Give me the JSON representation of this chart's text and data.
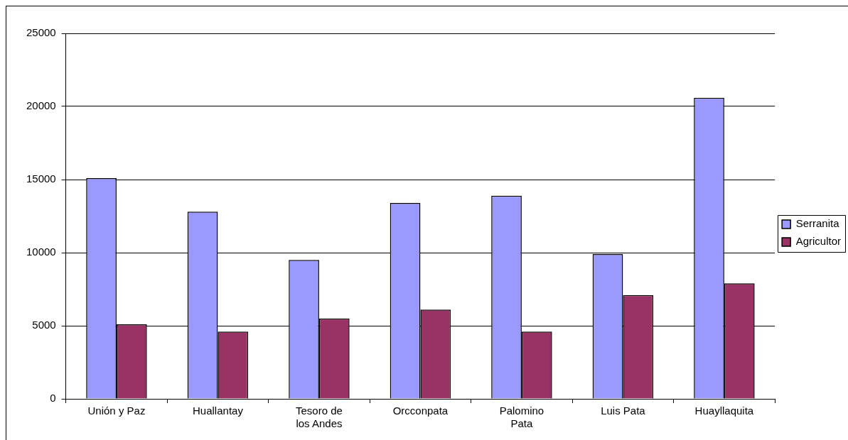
{
  "chart_data": {
    "type": "bar",
    "categories": [
      "Unión y Paz",
      "Huallantay",
      "Tesoro de los Andes",
      "Orcconpata",
      "Palomino Pata",
      "Luis Pata",
      "Huayllaquita"
    ],
    "series": [
      {
        "name": "Serranita",
        "color": "#9999ff",
        "values": [
          15100,
          12800,
          9500,
          13400,
          13900,
          9900,
          20600
        ]
      },
      {
        "name": "Agricultor",
        "color": "#993366",
        "values": [
          5100,
          4600,
          5500,
          6100,
          4600,
          7100,
          7900
        ]
      }
    ],
    "ylim": [
      0,
      25000
    ],
    "yticks": [
      0,
      5000,
      10000,
      15000,
      20000,
      25000
    ],
    "grid": "y",
    "legend": "right"
  }
}
